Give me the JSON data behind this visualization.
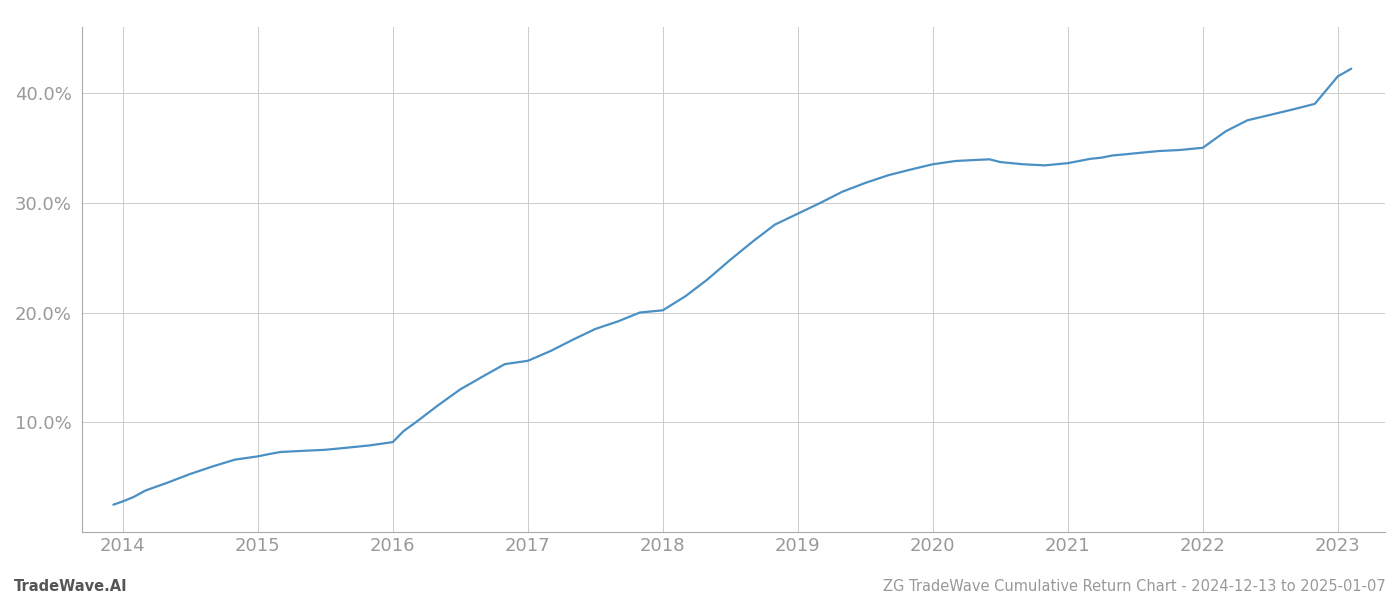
{
  "title": "",
  "footer_left": "TradeWave.AI",
  "footer_right": "ZG TradeWave Cumulative Return Chart - 2024-12-13 to 2025-01-07",
  "line_color": "#4a90c4",
  "background_color": "#ffffff",
  "grid_color": "#cccccc",
  "x_years": [
    2014,
    2015,
    2016,
    2017,
    2018,
    2019,
    2020,
    2021,
    2022,
    2023
  ],
  "data_x": [
    2013.93,
    2014.0,
    2014.08,
    2014.17,
    2014.33,
    2014.5,
    2014.67,
    2014.83,
    2015.0,
    2015.08,
    2015.17,
    2015.33,
    2015.5,
    2015.67,
    2015.83,
    2016.0,
    2016.08,
    2016.17,
    2016.33,
    2016.5,
    2016.67,
    2016.83,
    2017.0,
    2017.17,
    2017.33,
    2017.5,
    2017.67,
    2017.83,
    2018.0,
    2018.17,
    2018.33,
    2018.5,
    2018.67,
    2018.83,
    2019.0,
    2019.17,
    2019.33,
    2019.5,
    2019.67,
    2019.83,
    2020.0,
    2020.17,
    2020.33,
    2020.42,
    2020.5,
    2020.67,
    2020.83,
    2021.0,
    2021.17,
    2021.25,
    2021.33,
    2021.42,
    2021.5,
    2021.67,
    2021.83,
    2022.0,
    2022.17,
    2022.33,
    2022.5,
    2022.67,
    2022.83,
    2023.0,
    2023.1
  ],
  "data_y": [
    2.5,
    2.8,
    3.2,
    3.8,
    4.5,
    5.3,
    6.0,
    6.6,
    6.9,
    7.1,
    7.3,
    7.4,
    7.5,
    7.7,
    7.9,
    8.2,
    9.2,
    10.0,
    11.5,
    13.0,
    14.2,
    15.3,
    15.6,
    16.5,
    17.5,
    18.5,
    19.2,
    20.0,
    20.2,
    21.5,
    23.0,
    24.8,
    26.5,
    28.0,
    29.0,
    30.0,
    31.0,
    31.8,
    32.5,
    33.0,
    33.5,
    33.8,
    33.9,
    33.95,
    33.7,
    33.5,
    33.4,
    33.6,
    34.0,
    34.1,
    34.3,
    34.4,
    34.5,
    34.7,
    34.8,
    35.0,
    36.5,
    37.5,
    38.0,
    38.5,
    39.0,
    41.5,
    42.2
  ],
  "ylim": [
    0,
    46
  ],
  "yticks": [
    10.0,
    20.0,
    30.0,
    40.0
  ],
  "ytick_labels": [
    "10.0%",
    "20.0%",
    "30.0%",
    "40.0%"
  ],
  "xlim": [
    2013.7,
    2023.35
  ],
  "line_width": 1.6,
  "footer_fontsize": 10.5,
  "tick_fontsize": 13,
  "grid_alpha": 1.0,
  "grid_linewidth": 0.7
}
